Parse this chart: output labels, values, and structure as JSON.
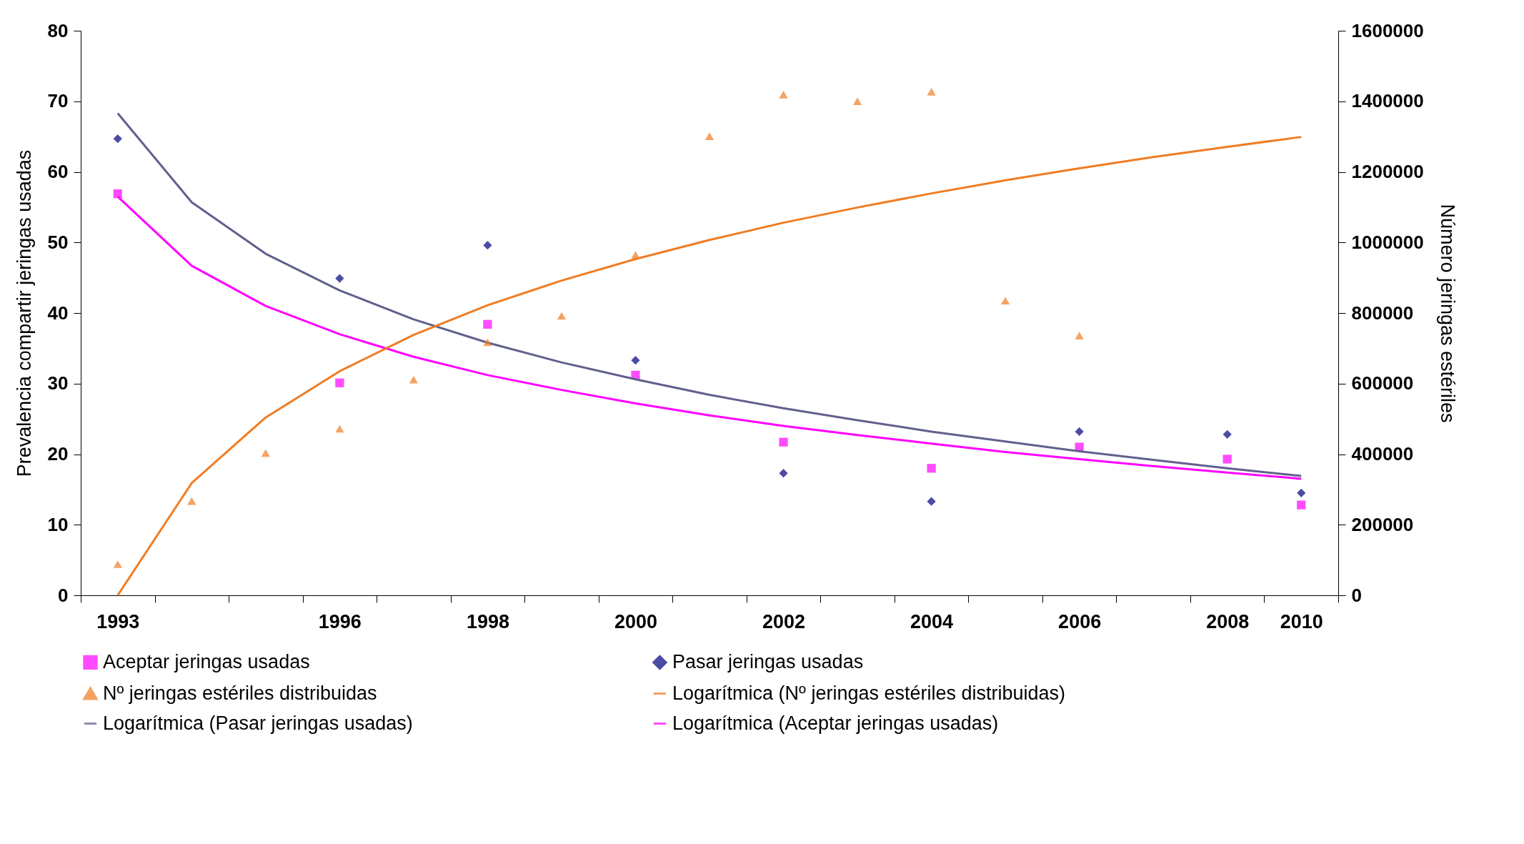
{
  "chart_data": {
    "type": "scatter",
    "categories": [
      "1993",
      null,
      null,
      "1996",
      null,
      "1998",
      null,
      "2000",
      null,
      "2002",
      null,
      "2004",
      null,
      "2006",
      null,
      "2008",
      "2010"
    ],
    "ylabel": "Prevalencia compartir jeringas usadas",
    "y2label": "Número jeringas estériles",
    "ylim": [
      0,
      80
    ],
    "yticks": [
      0,
      10,
      20,
      30,
      40,
      50,
      60,
      70,
      80
    ],
    "y2lim": [
      0,
      1600000
    ],
    "y2ticks": [
      0,
      200000,
      400000,
      600000,
      800000,
      1000000,
      1200000,
      1400000,
      1600000
    ],
    "grid": false,
    "legend": "bottom",
    "series": [
      {
        "name": "Aceptar jeringas usadas",
        "marker": "square",
        "color": "#ff00ff",
        "values": [
          56.9,
          null,
          null,
          30.1,
          null,
          38.4,
          null,
          31.2,
          null,
          21.7,
          null,
          18.0,
          null,
          21.0,
          null,
          19.3,
          12.8
        ]
      },
      {
        "name": "Pasar jeringas usadas",
        "marker": "diamond",
        "color": "#000080",
        "values": [
          64.7,
          null,
          null,
          44.9,
          null,
          49.6,
          null,
          33.3,
          null,
          17.3,
          null,
          13.3,
          null,
          23.2,
          null,
          22.8,
          14.5
        ]
      },
      {
        "name": "Nº jeringas estériles distribuidas",
        "marker": "triangle",
        "axis": "y2",
        "color": "#f07c22",
        "values": [
          88000,
          267000,
          403000,
          472000,
          611000,
          717000,
          792000,
          965000,
          1301000,
          1419000,
          1400000,
          1427000,
          835000,
          736000,
          null,
          null,
          null
        ]
      },
      {
        "name": "Logarítmica (Nº jeringas estériles distribuidas)",
        "type": "line",
        "axis": "y2",
        "color": "#f07c22",
        "values": [
          0,
          318000,
          504000,
          635000,
          738000,
          822000,
          892000,
          953000,
          1007000,
          1056000,
          1099000,
          1139000,
          1176000,
          1210000,
          1242000,
          1271000,
          1299000
        ]
      },
      {
        "name": "Logarítmica (Pasar jeringas usadas)",
        "type": "line",
        "color": "#60608e",
        "values": [
          68.3,
          55.7,
          48.4,
          43.2,
          39.1,
          35.8,
          33.0,
          30.6,
          28.4,
          26.5,
          24.8,
          23.2,
          21.8,
          20.4,
          19.2,
          18.0,
          16.9
        ]
      },
      {
        "name": "Logarítmica (Aceptar jeringas usadas)",
        "type": "line",
        "color": "#ff00ff",
        "values": [
          56.5,
          46.7,
          41.0,
          37.0,
          33.8,
          31.2,
          29.1,
          27.2,
          25.5,
          24.0,
          22.7,
          21.5,
          20.3,
          19.3,
          18.3,
          17.4,
          16.5
        ]
      }
    ]
  }
}
